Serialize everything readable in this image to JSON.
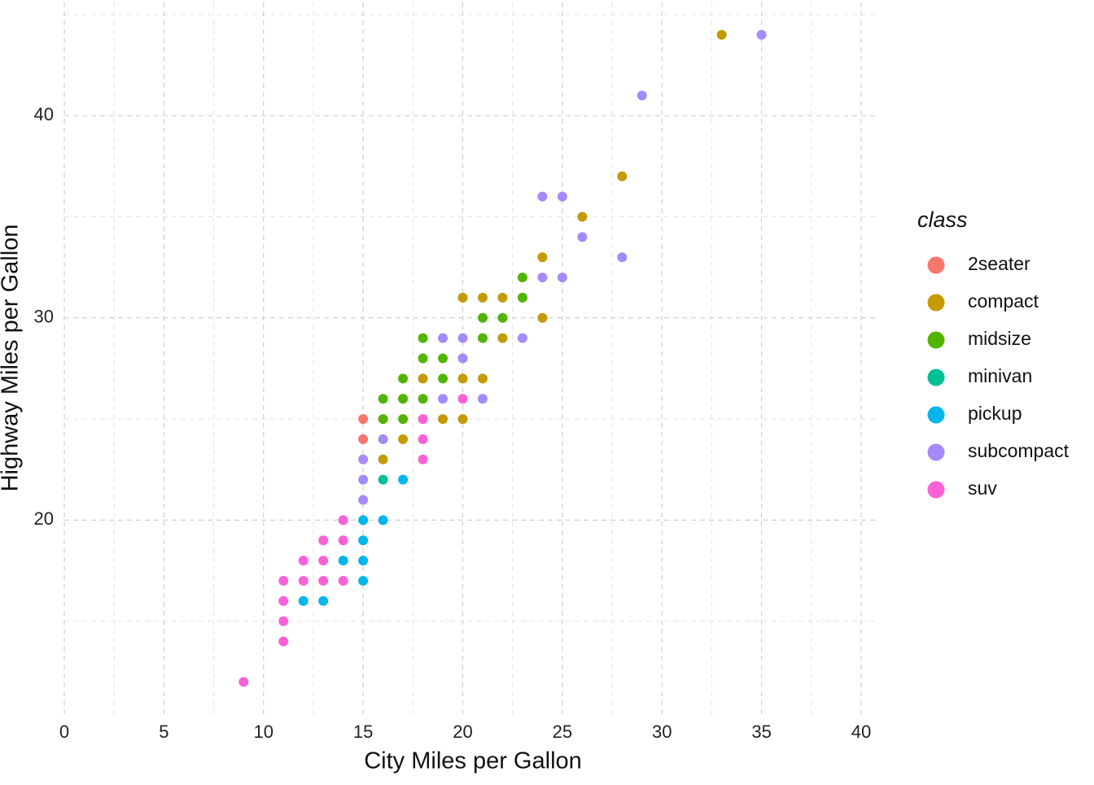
{
  "chart_data": {
    "type": "scatter",
    "x_label": "City Miles per Gallon",
    "y_label": "Highway Miles per Gallon",
    "legend_title": "class",
    "legend_position": "right",
    "grid": true,
    "xlim": [
      0,
      40.9
    ],
    "ylim": [
      10.4,
      45.6
    ],
    "xticks": [
      0,
      5,
      10,
      15,
      20,
      25,
      30,
      35,
      40
    ],
    "yticks": [
      20,
      30,
      40
    ],
    "series": [
      {
        "name": "2seater",
        "color": "#F8766D",
        "x": [
          15,
          15
        ],
        "y": [
          25,
          24
        ]
      },
      {
        "name": "compact",
        "color": "#C49A00",
        "x": [
          33,
          28,
          26,
          24,
          20,
          21,
          22,
          24,
          22,
          18,
          20,
          21,
          19,
          20,
          17,
          16
        ],
        "y": [
          44,
          37,
          35,
          33,
          31,
          31,
          31,
          30,
          29,
          27,
          27,
          27,
          25,
          25,
          24,
          23
        ]
      },
      {
        "name": "midsize",
        "color": "#53B400",
        "x": [
          23,
          23,
          21,
          22,
          18,
          21,
          18,
          19,
          17,
          19,
          16,
          17,
          18,
          16,
          17
        ],
        "y": [
          32,
          31,
          30,
          30,
          29,
          29,
          28,
          28,
          27,
          27,
          26,
          26,
          26,
          25,
          25
        ]
      },
      {
        "name": "minivan",
        "color": "#00C094",
        "x": [
          16
        ],
        "y": [
          22
        ]
      },
      {
        "name": "pickup",
        "color": "#00B6EB",
        "x": [
          17,
          15,
          16,
          15,
          14,
          15,
          15,
          12,
          13
        ],
        "y": [
          22,
          20,
          20,
          19,
          18,
          18,
          17,
          16,
          16
        ]
      },
      {
        "name": "subcompact",
        "color": "#A58AFF",
        "x": [
          35,
          29,
          24,
          25,
          26,
          28,
          24,
          25,
          19,
          20,
          23,
          20,
          19,
          21,
          16,
          15,
          15,
          15
        ],
        "y": [
          44,
          41,
          36,
          36,
          34,
          33,
          32,
          32,
          29,
          29,
          29,
          28,
          26,
          26,
          24,
          23,
          22,
          21
        ]
      },
      {
        "name": "suv",
        "color": "#FB61D7",
        "x": [
          20,
          18,
          18,
          18,
          14,
          13,
          14,
          12,
          13,
          11,
          12,
          13,
          14,
          11,
          11,
          11,
          9
        ],
        "y": [
          26,
          25,
          24,
          23,
          20,
          19,
          19,
          18,
          18,
          17,
          17,
          17,
          17,
          16,
          15,
          14,
          12
        ]
      }
    ]
  }
}
